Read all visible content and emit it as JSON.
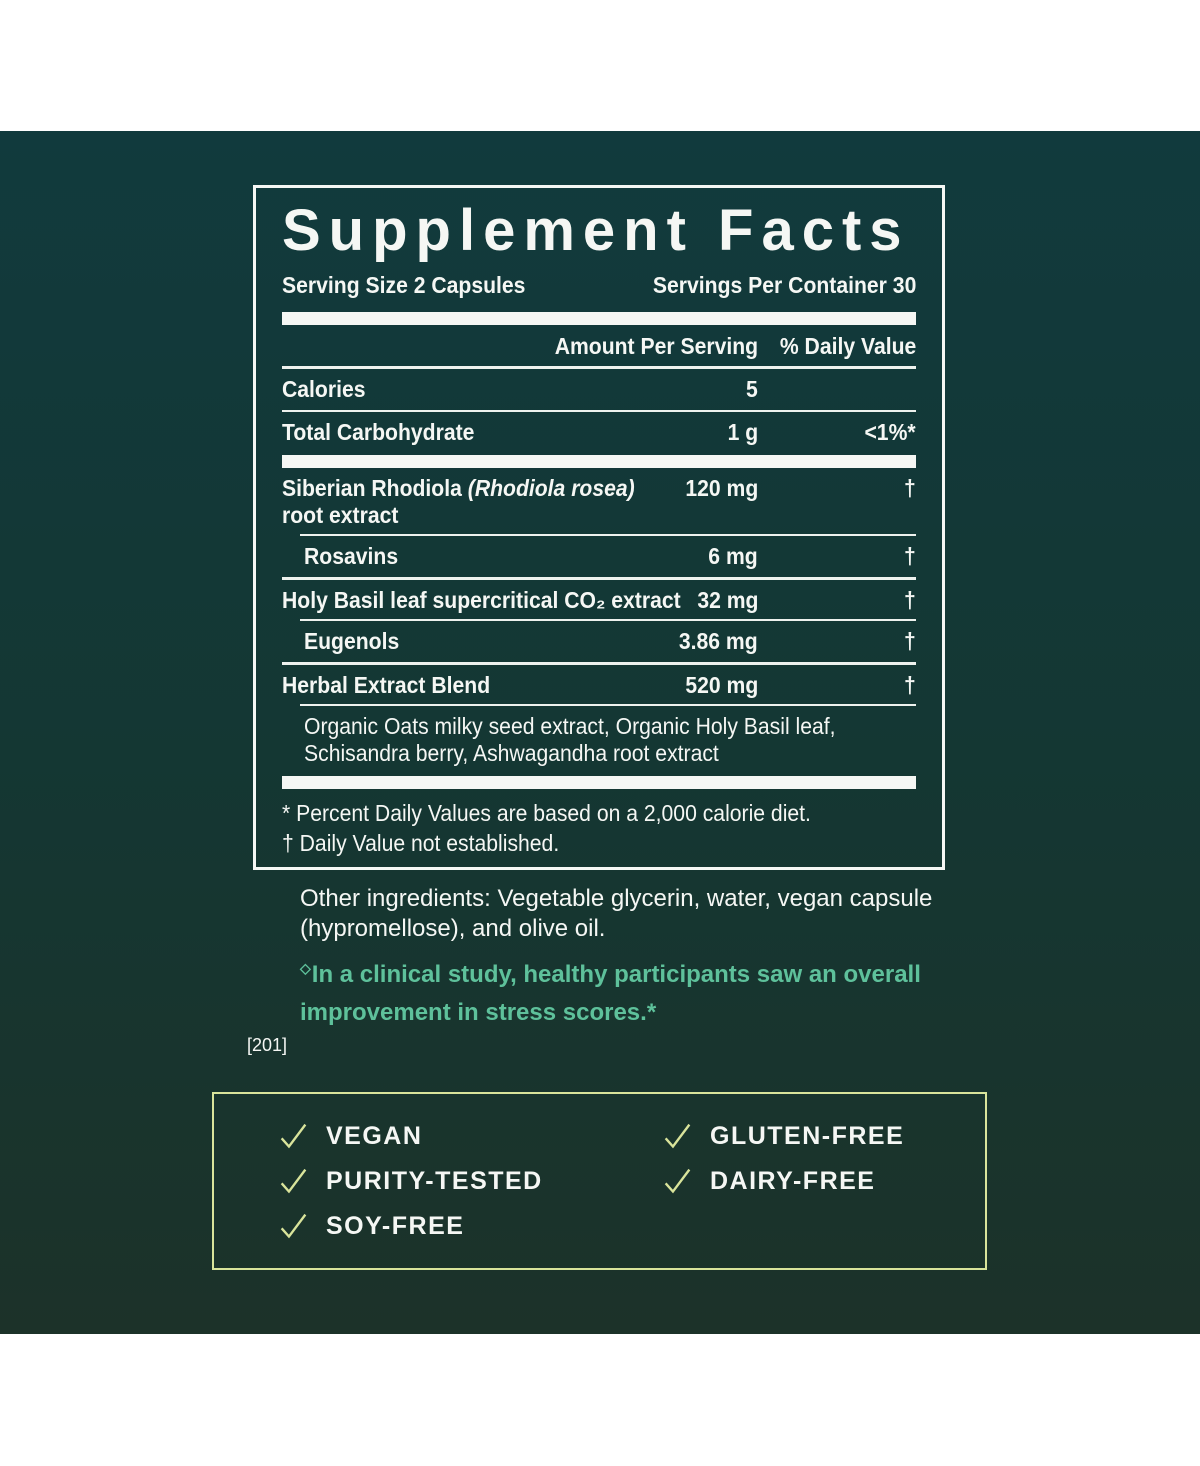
{
  "colors": {
    "panel_top": "#113a3d",
    "panel_bottom": "#1c3229",
    "text_white": "#f5f7f4",
    "accent_green": "#5ec19b",
    "badge_green": "#d9e49b"
  },
  "supplement_facts": {
    "title": "Supplement Facts",
    "serving_size": "Serving Size 2 Capsules",
    "servings_per_container": "Servings Per Container 30",
    "col_amount": "Amount Per Serving",
    "col_dv": "% Daily Value",
    "rows": [
      {
        "label": "Calories",
        "amount": "5",
        "dv": "",
        "divider_below": "thin"
      },
      {
        "label": "Total Carbohydrate",
        "amount": "1 g",
        "dv": "<1%*",
        "divider_below": "bar"
      },
      {
        "label": "Siberian Rhodiola ",
        "label_italic": "(Rhodiola rosea)",
        "label_line2": "root extract",
        "amount": "120 mg",
        "dv": "†",
        "divider_below": "thin-indent"
      },
      {
        "label": "Rosavins",
        "amount": "6 mg",
        "dv": "†",
        "indent": true,
        "divider_below": "med"
      },
      {
        "label": "Holy Basil leaf supercritical CO₂ extract",
        "amount": "32 mg",
        "dv": "†",
        "divider_below": "thin-indent"
      },
      {
        "label": "Eugenols",
        "amount": "3.86 mg",
        "dv": "†",
        "indent": true,
        "divider_below": "med"
      },
      {
        "label": "Herbal Extract Blend",
        "amount": "520 mg",
        "dv": "†",
        "divider_below": "thin-indent"
      },
      {
        "description_lines": [
          "Organic Oats milky seed extract, Organic Holy Basil leaf,",
          "Schisandra berry, Ashwagandha root extract"
        ],
        "divider_below": "bar"
      }
    ],
    "footnote_percent": "* Percent Daily Values are based on a 2,000 calorie diet.",
    "footnote_dagger": "† Daily Value not established."
  },
  "other_ingredients": {
    "line1": "Other ingredients: Vegetable glycerin, water, vegan capsule",
    "line2": "(hypromellose), and olive oil."
  },
  "clinical_note": {
    "marker": "◇",
    "line1": "In a clinical study, healthy participants saw an overall",
    "line2": "improvement in stress scores.*"
  },
  "reference_code": "[201]",
  "badges": {
    "left": [
      "VEGAN",
      "PURITY-TESTED",
      "SOY-FREE"
    ],
    "right": [
      "GLUTEN-FREE",
      "DAIRY-FREE"
    ]
  }
}
